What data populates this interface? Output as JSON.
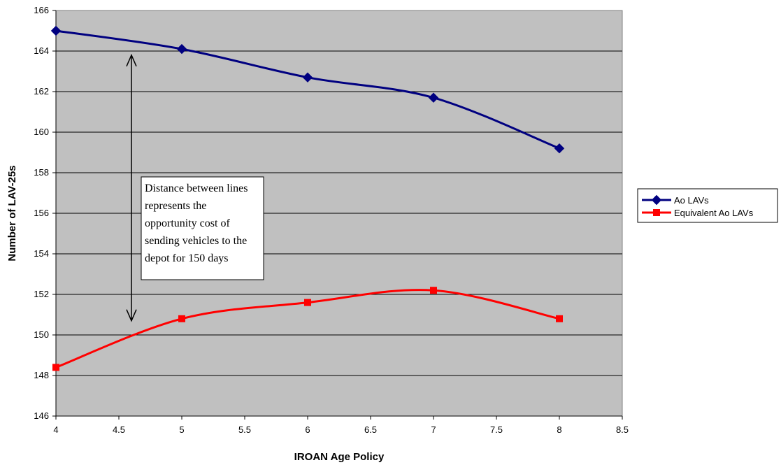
{
  "chart_data": {
    "type": "line",
    "title": "",
    "xlabel": "IROAN Age Policy",
    "ylabel": "Number of LAV-25s",
    "xlim": [
      4,
      8.5
    ],
    "ylim": [
      146,
      166
    ],
    "xticks": [
      "4",
      "4.5",
      "5",
      "5.5",
      "6",
      "6.5",
      "7",
      "7.5",
      "8",
      "8.5"
    ],
    "yticks": [
      "146",
      "148",
      "150",
      "152",
      "154",
      "156",
      "158",
      "160",
      "162",
      "164",
      "166"
    ],
    "grid": "horizontal",
    "plot_background": "#c0c0c0",
    "legend_position": "right",
    "smoothed": true,
    "series": [
      {
        "name": "Ao LAVs",
        "color": "#000080",
        "marker": "diamond",
        "x": [
          4,
          5,
          6,
          7,
          8
        ],
        "y": [
          165.0,
          164.1,
          162.7,
          161.7,
          159.2
        ]
      },
      {
        "name": "Equivalent  Ao LAVs",
        "color": "#ff0000",
        "marker": "square",
        "x": [
          4,
          5,
          6,
          7,
          8
        ],
        "y": [
          148.4,
          150.8,
          151.6,
          152.2,
          150.8
        ]
      }
    ],
    "annotation": {
      "lines": [
        "Distance between lines",
        "represents the",
        "opportunity cost of",
        "sending vehicles to the",
        "depot for 150 days"
      ],
      "arrow_x": 4.6,
      "arrow_y": [
        163.8,
        150.7
      ]
    }
  }
}
